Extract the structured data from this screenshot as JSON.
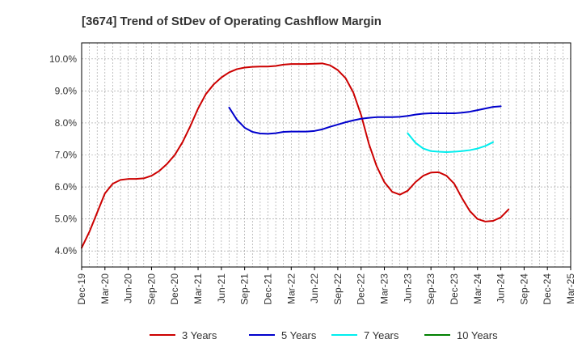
{
  "chart_data": {
    "type": "line",
    "title": "[3674]  Trend of StDev of Operating Cashflow Margin",
    "xlabel": "",
    "ylabel": "",
    "x_ticks": [
      "Dec-19",
      "Mar-20",
      "Jun-20",
      "Sep-20",
      "Dec-20",
      "Mar-21",
      "Jun-21",
      "Sep-21",
      "Dec-21",
      "Mar-22",
      "Jun-22",
      "Sep-22",
      "Dec-22",
      "Mar-23",
      "Jun-23",
      "Sep-23",
      "Dec-23",
      "Mar-24",
      "Jun-24",
      "Sep-24",
      "Dec-24",
      "Mar-25"
    ],
    "y_ticks": [
      "4.0%",
      "5.0%",
      "6.0%",
      "7.0%",
      "8.0%",
      "9.0%",
      "10.0%"
    ],
    "ylim": [
      3.5,
      10.5
    ],
    "grid": true,
    "legend_position": "bottom",
    "colors": {
      "3 Years": "#cc0000",
      "5 Years": "#0000cc",
      "7 Years": "#00eeee",
      "10 Years": "#008000"
    },
    "series": [
      {
        "name": "3 Years",
        "start_index": 0,
        "values": [
          4.1,
          4.6,
          5.2,
          5.8,
          6.1,
          6.22,
          6.25,
          6.25,
          6.27,
          6.35,
          6.5,
          6.72,
          7.0,
          7.4,
          7.9,
          8.45,
          8.9,
          9.2,
          9.42,
          9.58,
          9.68,
          9.73,
          9.75,
          9.76,
          9.76,
          9.78,
          9.82,
          9.84,
          9.84,
          9.84,
          9.85,
          9.86,
          9.8,
          9.65,
          9.4,
          8.95,
          8.25,
          7.35,
          6.65,
          6.15,
          5.85,
          5.76,
          5.88,
          6.15,
          6.35,
          6.45,
          6.46,
          6.35,
          6.1,
          5.65,
          5.25,
          5.0,
          4.92,
          4.94,
          5.05,
          5.3
        ]
      },
      {
        "name": "5 Years",
        "start_index": 19,
        "values": [
          8.48,
          8.1,
          7.85,
          7.72,
          7.67,
          7.66,
          7.68,
          7.72,
          7.73,
          7.73,
          7.73,
          7.75,
          7.8,
          7.88,
          7.95,
          8.02,
          8.08,
          8.13,
          8.16,
          8.18,
          8.18,
          8.18,
          8.19,
          8.22,
          8.26,
          8.29,
          8.3,
          8.3,
          8.3,
          8.3,
          8.32,
          8.35,
          8.4,
          8.45,
          8.5,
          8.52
        ]
      },
      {
        "name": "7 Years",
        "start_index": 42,
        "values": [
          7.68,
          7.38,
          7.2,
          7.12,
          7.1,
          7.09,
          7.1,
          7.12,
          7.15,
          7.2,
          7.28,
          7.4
        ]
      },
      {
        "name": "10 Years",
        "start_index": 0,
        "values": []
      }
    ]
  }
}
